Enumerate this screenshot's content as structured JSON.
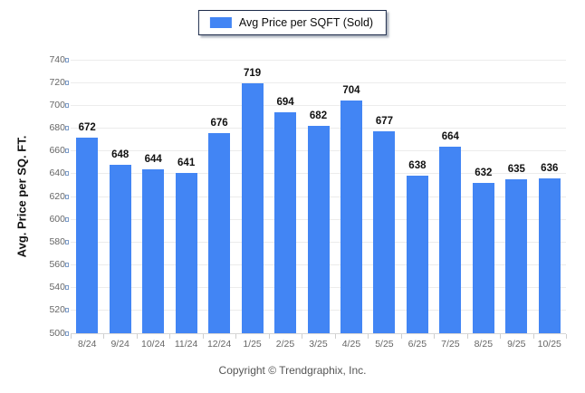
{
  "page": {
    "background": "#ffffff"
  },
  "legend": {
    "label": "Avg Price per SQFT (Sold)",
    "swatch_color": "#4285F4"
  },
  "chart_data": {
    "type": "bar",
    "title": "",
    "series_name": "Avg Price per SQFT (Sold)",
    "categories": [
      "8/24",
      "9/24",
      "10/24",
      "11/24",
      "12/24",
      "1/25",
      "2/25",
      "3/25",
      "4/25",
      "5/25",
      "6/25",
      "7/25",
      "8/25",
      "9/25",
      "10/25"
    ],
    "values": [
      672,
      648,
      644,
      641,
      676,
      719,
      694,
      682,
      704,
      677,
      638,
      664,
      632,
      635,
      636
    ],
    "xlabel": "",
    "ylabel": "Avg. Price per SQ. FT.",
    "ylim": [
      500,
      740
    ],
    "ytick_step": 20,
    "grid": "horizontal",
    "legend_position": "top-center",
    "bar_color": "#4285F4",
    "value_labels": true
  },
  "footer": {
    "copyright": "Copyright © Trendgraphix, Inc."
  },
  "colors": {
    "bar": "#4285F4",
    "gridline": "#ececec",
    "axis_line": "#d6d6d6",
    "tick_text": "#666666",
    "value_text": "#111111",
    "legend_border": "#1c2b4a"
  }
}
